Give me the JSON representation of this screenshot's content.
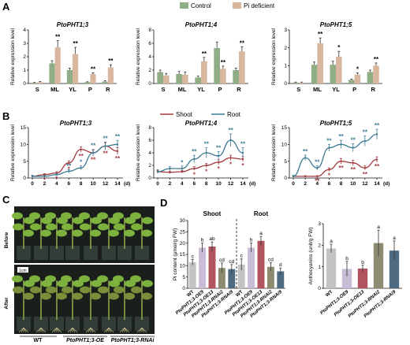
{
  "panel_labels": {
    "A": "A",
    "B": "B",
    "C": "C",
    "D": "D"
  },
  "legendA": {
    "control": "Control",
    "pi": "Pi deficient",
    "control_color": "#8fae85",
    "pi_color": "#d9b79f"
  },
  "legendB": {
    "shoot": "Shoot",
    "root": "Root",
    "shoot_color": "#a33a3f",
    "root_color": "#3d7b92"
  },
  "photo": {
    "before": "Before",
    "after": "After",
    "scale": "1cm",
    "groups": [
      "WT",
      "PtoPHT1;3-OE",
      "PtoPHT1;3-RNAi"
    ]
  },
  "chart_data": [
    {
      "type": "bar",
      "title": "PtoPHT1;3",
      "categories": [
        "S",
        "ML",
        "YL",
        "P",
        "R"
      ],
      "ylabel": "Relative expression level",
      "ylim": [
        0,
        4
      ],
      "yticks": [
        0,
        1,
        2,
        3,
        4
      ],
      "series": [
        {
          "name": "Control",
          "values": [
            0.05,
            1.5,
            1.0,
            0.1,
            0.15
          ],
          "errors": [
            0.03,
            0.2,
            0.15,
            0.03,
            0.05
          ]
        },
        {
          "name": "Pi deficient",
          "values": [
            0.1,
            2.7,
            2.2,
            0.7,
            1.2
          ],
          "errors": [
            0.05,
            0.5,
            0.5,
            0.1,
            0.2
          ]
        }
      ],
      "marks": [
        "",
        "**",
        "**",
        "**",
        "**"
      ]
    },
    {
      "type": "bar",
      "title": "PtoPHT1;4",
      "categories": [
        "S",
        "ML",
        "YL",
        "P",
        "R"
      ],
      "ylabel": "Relative expression level",
      "ylim": [
        0,
        8
      ],
      "yticks": [
        0,
        2,
        4,
        6,
        8
      ],
      "series": [
        {
          "name": "Control",
          "values": [
            1.7,
            1.4,
            0.9,
            5.3,
            2.0
          ],
          "errors": [
            0.3,
            0.4,
            0.2,
            0.9,
            0.3
          ]
        },
        {
          "name": "Pi deficient",
          "values": [
            1.2,
            1.3,
            3.3,
            2.2,
            4.8
          ],
          "errors": [
            0.3,
            0.4,
            0.6,
            0.4,
            0.7
          ]
        }
      ],
      "marks": [
        "",
        "",
        "**",
        "**",
        "**"
      ]
    },
    {
      "type": "bar",
      "title": "PtoPHT1;5",
      "categories": [
        "S",
        "ML",
        "YL",
        "P",
        "R"
      ],
      "ylabel": "Relative expression level",
      "ylim": [
        0,
        3
      ],
      "yticks": [
        0,
        1,
        2,
        3
      ],
      "series": [
        {
          "name": "Control",
          "values": [
            0.05,
            1.05,
            1.05,
            0.2,
            0.65
          ],
          "errors": [
            0.03,
            0.15,
            0.2,
            0.05,
            0.1
          ]
        },
        {
          "name": "Pi deficient",
          "values": [
            0.05,
            2.25,
            1.5,
            0.5,
            1.0
          ],
          "errors": [
            0.03,
            0.3,
            0.3,
            0.1,
            0.15
          ]
        }
      ],
      "marks": [
        "",
        "**",
        "*",
        "*",
        "**"
      ]
    },
    {
      "type": "line",
      "title": "PtoPHT1;3",
      "x": [
        0,
        2,
        4,
        6,
        8,
        10,
        12,
        14
      ],
      "xunit": "(d)",
      "ylabel": "Relative expression level",
      "ylim": [
        0,
        15
      ],
      "yticks": [
        0,
        5,
        10,
        15
      ],
      "series": [
        {
          "name": "Shoot",
          "values": [
            0.5,
            1.0,
            1.5,
            4.5,
            8.5,
            7.5,
            9.5,
            8.0
          ],
          "errors": [
            0.3,
            0.3,
            0.4,
            0.6,
            0.8,
            0.8,
            1.0,
            1.0
          ]
        },
        {
          "name": "Root",
          "values": [
            0.5,
            0.5,
            1.0,
            2.0,
            3.0,
            7.5,
            9.5,
            10.0
          ],
          "errors": [
            0.3,
            0.3,
            0.3,
            0.5,
            0.6,
            1.0,
            1.2,
            1.2
          ]
        }
      ],
      "shoot_marks": [
        "",
        "*",
        "*",
        "*",
        "**",
        "**",
        "**",
        "**"
      ],
      "root_marks": [
        "",
        "",
        "",
        "**",
        "*",
        "**",
        "**",
        "**"
      ]
    },
    {
      "type": "line",
      "title": "PtoPHT1;4",
      "x": [
        0,
        2,
        4,
        6,
        8,
        10,
        12,
        14
      ],
      "xunit": "(d)",
      "ylabel": "Relative expression level",
      "ylim": [
        0,
        8
      ],
      "yticks": [
        0,
        2,
        4,
        6,
        8
      ],
      "series": [
        {
          "name": "Shoot",
          "values": [
            1.0,
            0.9,
            1.0,
            1.5,
            2.0,
            2.5,
            3.2,
            3.0
          ],
          "errors": [
            0.2,
            0.2,
            0.2,
            0.3,
            0.3,
            0.4,
            0.4,
            0.4
          ]
        },
        {
          "name": "Root",
          "values": [
            1.0,
            1.5,
            1.5,
            3.0,
            4.0,
            3.5,
            6.0,
            4.0
          ],
          "errors": [
            0.3,
            0.3,
            0.4,
            0.6,
            0.8,
            0.7,
            1.0,
            0.8
          ]
        }
      ],
      "shoot_marks": [
        "",
        "",
        "",
        "*",
        "*",
        "*",
        "*",
        "*"
      ],
      "root_marks": [
        "",
        "",
        "*",
        "**",
        "**",
        "**",
        "**",
        "**"
      ]
    },
    {
      "type": "line",
      "title": "PtoPHT1;5",
      "x": [
        0,
        2,
        4,
        6,
        8,
        10,
        12,
        14
      ],
      "xunit": "(d)",
      "ylabel": "Relative expression level",
      "ylim": [
        0,
        15
      ],
      "yticks": [
        0,
        5,
        10,
        15
      ],
      "series": [
        {
          "name": "Shoot",
          "values": [
            0.5,
            0.5,
            0.5,
            2.5,
            5.0,
            4.5,
            3.0,
            5.5
          ],
          "errors": [
            0.2,
            0.2,
            0.2,
            0.5,
            0.8,
            0.8,
            0.6,
            0.8
          ]
        },
        {
          "name": "Root",
          "values": [
            0.5,
            6.0,
            3.0,
            9.0,
            10.0,
            9.0,
            11.0,
            13.0
          ],
          "errors": [
            0.3,
            0.8,
            0.6,
            1.0,
            1.2,
            1.2,
            1.5,
            1.5
          ]
        }
      ],
      "shoot_marks": [
        "",
        "",
        "**",
        "*",
        "**",
        "**",
        "**",
        "**"
      ],
      "root_marks": [
        "",
        "**",
        "**",
        "**",
        "**",
        "**",
        "**",
        "**"
      ]
    },
    {
      "type": "bar",
      "title": "",
      "groups": [
        {
          "name": "Shoot",
          "values": [
            11.5,
            18.0,
            18.5,
            9.0,
            8.5
          ],
          "errors": [
            1.2,
            2.0,
            2.0,
            2.2,
            2.0
          ],
          "letters": [
            "c",
            "b",
            "ab",
            "cd",
            "cd"
          ]
        },
        {
          "name": "Root",
          "values": [
            10.5,
            18.0,
            21.0,
            9.5,
            7.5
          ],
          "errors": [
            2.5,
            2.0,
            2.0,
            1.8,
            1.5
          ],
          "letters": [
            "c",
            "b",
            "a",
            "cd",
            "d"
          ]
        }
      ],
      "categories": [
        "WT",
        "PtoPHT1;3-OE9",
        "PtoPHT1;3-OE13",
        "PtoPHT1;3-RNAi2",
        "PtoPHT1;3-RNAi9"
      ],
      "ylabel": "Pi content (μmol/g FW)",
      "ylim": [
        0,
        30
      ],
      "yticks": [
        0,
        5,
        10,
        15,
        20,
        25,
        30
      ]
    },
    {
      "type": "bar",
      "title": "",
      "categories": [
        "WT",
        "PtoPHT1;3-OE9",
        "PtoPHT1;3-OE13",
        "PtoPHT1;3-RNAi2",
        "PtoPHT1;3-RNAi9"
      ],
      "values": [
        1.85,
        0.9,
        0.92,
        2.1,
        1.75
      ],
      "errors": [
        0.2,
        0.35,
        0.15,
        0.6,
        0.45
      ],
      "letters": [
        "a",
        "b",
        "b",
        "a",
        "a"
      ],
      "ylabel": "Anthocyanins (unit/g FW)",
      "ylim": [
        0,
        3
      ],
      "yticks": [
        0,
        1,
        2,
        3
      ]
    }
  ]
}
